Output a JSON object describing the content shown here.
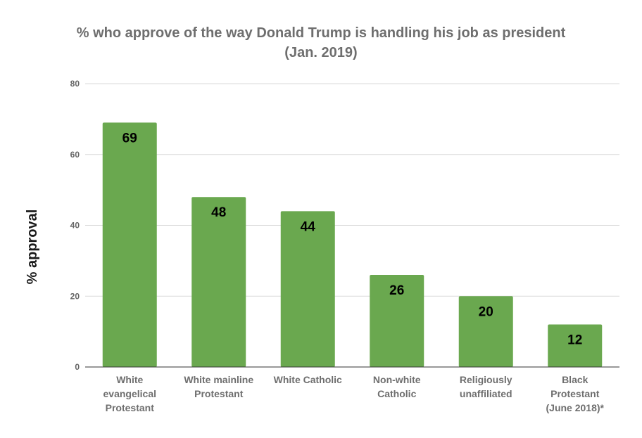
{
  "chart_data": {
    "type": "bar",
    "title": "% who approve of the way Donald Trump is handling his job as president",
    "subtitle": "(Jan. 2019)",
    "xlabel": "",
    "ylabel": "% approval",
    "ylim": [
      0,
      80
    ],
    "yticks": [
      0,
      20,
      40,
      60,
      80
    ],
    "grid": true,
    "categories": [
      [
        "White",
        "evangelical",
        "Protestant"
      ],
      [
        "White mainline",
        "Protestant"
      ],
      [
        "White Catholic"
      ],
      [
        "Non-white",
        "Catholic"
      ],
      [
        "Religiously",
        "unaffiliated"
      ],
      [
        "Black",
        "Protestant",
        "(June 2018)*"
      ]
    ],
    "values": [
      69,
      48,
      44,
      26,
      20,
      12
    ],
    "bar_color": "#6aa84f",
    "gridline_color": "#d9d9d9",
    "axis_color": "#333333"
  }
}
